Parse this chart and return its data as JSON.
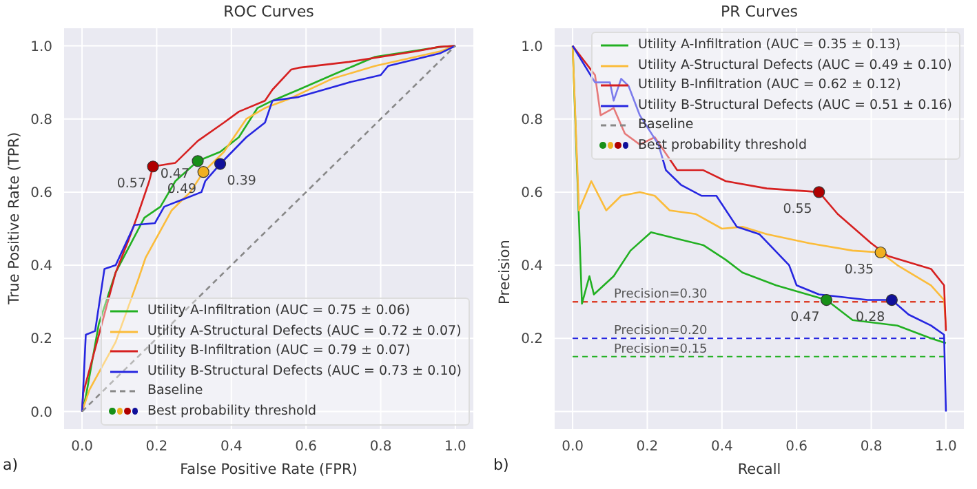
{
  "chart_data": [
    {
      "type": "line",
      "title": "ROC Curves",
      "xlabel": "False Positive Rate (FPR)",
      "ylabel": "True Positive Rate (TPR)",
      "xlim": [
        -0.05,
        1.05
      ],
      "ylim": [
        -0.05,
        1.05
      ],
      "xticks": [
        {
          "value": 0,
          "label": "0.0"
        },
        {
          "value": 0.2,
          "label": "0.2"
        },
        {
          "value": 0.4,
          "label": "0.4"
        },
        {
          "value": 0.6,
          "label": "0.6"
        },
        {
          "value": 0.8,
          "label": "0.8"
        },
        {
          "value": 1,
          "label": "1.0"
        }
      ],
      "yticks": [
        {
          "value": 0,
          "label": "0.0"
        },
        {
          "value": 0.2,
          "label": "0.2"
        },
        {
          "value": 0.4,
          "label": "0.4"
        },
        {
          "value": 0.6,
          "label": "0.6"
        },
        {
          "value": 0.8,
          "label": "0.8"
        },
        {
          "value": 1,
          "label": "1.0"
        }
      ],
      "grid": true,
      "legend": "bottom right",
      "annotations": [
        "a)",
        {
          "text": "0.47",
          "x": 0.31,
          "y": 0.685
        },
        {
          "text": "0.49",
          "x": 0.325,
          "y": 0.655
        },
        {
          "text": "0.57",
          "x": 0.19,
          "y": 0.67
        },
        {
          "text": "0.39",
          "x": 0.37,
          "y": 0.677
        }
      ],
      "series": [
        {
          "name": "Utility A-Infiltration (AUC = 0.75 ± 0.06)",
          "color": "#22b022",
          "x": [
            0,
            0.01,
            0.045,
            0.09,
            0.167,
            0.21,
            0.25,
            0.31,
            0.37,
            0.42,
            0.47,
            0.51,
            0.58,
            0.67,
            0.785,
            0.96,
            1
          ],
          "values": [
            0,
            0.04,
            0.24,
            0.38,
            0.53,
            0.56,
            0.63,
            0.685,
            0.71,
            0.75,
            0.83,
            0.85,
            0.88,
            0.92,
            0.97,
            0.997,
            1
          ]
        },
        {
          "name": "Utility A-Structural Defects (AUC = 0.72 ± 0.07)",
          "color": "#fbbc3a",
          "x": [
            0,
            0.02,
            0.09,
            0.15,
            0.17,
            0.24,
            0.29,
            0.325,
            0.38,
            0.44,
            0.49,
            0.555,
            0.67,
            0.785,
            0.96,
            1
          ],
          "values": [
            0,
            0.06,
            0.19,
            0.36,
            0.42,
            0.55,
            0.6,
            0.655,
            0.71,
            0.8,
            0.83,
            0.855,
            0.91,
            0.945,
            0.985,
            1
          ]
        },
        {
          "name": "Utility B-Infiltration (AUC = 0.79 ± 0.07)",
          "color": "#d62020",
          "x": [
            0,
            0.003,
            0.09,
            0.125,
            0.15,
            0.18,
            0.19,
            0.25,
            0.31,
            0.38,
            0.42,
            0.49,
            0.51,
            0.56,
            0.58,
            0.715,
            0.9,
            0.955,
            1
          ],
          "values": [
            0,
            0.05,
            0.38,
            0.47,
            0.54,
            0.63,
            0.67,
            0.68,
            0.74,
            0.79,
            0.82,
            0.85,
            0.88,
            0.935,
            0.94,
            0.956,
            0.986,
            0.997,
            1
          ]
        },
        {
          "name": "Utility B-Structural Defects (AUC = 0.73 ± 0.10)",
          "color": "#2626e0",
          "x": [
            0,
            0.003,
            0.01,
            0.035,
            0.06,
            0.09,
            0.14,
            0.195,
            0.22,
            0.32,
            0.33,
            0.37,
            0.44,
            0.49,
            0.51,
            0.58,
            0.715,
            0.8,
            0.82,
            0.96,
            1
          ],
          "values": [
            0,
            0.06,
            0.21,
            0.22,
            0.39,
            0.4,
            0.51,
            0.515,
            0.56,
            0.6,
            0.63,
            0.677,
            0.75,
            0.79,
            0.85,
            0.86,
            0.9,
            0.92,
            0.945,
            0.98,
            1
          ]
        },
        {
          "name": "Baseline",
          "color": "#888888",
          "line_style": "dashed",
          "x": [
            0,
            1
          ],
          "values": [
            0,
            1
          ]
        },
        {
          "name": "Best probability threshold",
          "type": "scatter",
          "marker": "circle",
          "color": "#777777",
          "colors": [
            "#189018",
            "#f0b020",
            "#b00000",
            "#10109a"
          ],
          "x": [
            0.31,
            0.325,
            0.19,
            0.37
          ],
          "values": [
            0.685,
            0.655,
            0.67,
            0.677
          ]
        }
      ]
    },
    {
      "type": "line",
      "title": "PR Curves",
      "xlabel": "Recall",
      "ylabel": "Precision",
      "xlim": [
        -0.05,
        1.05
      ],
      "ylim": [
        -0.05,
        1.05
      ],
      "xticks": [
        {
          "value": 0,
          "label": "0.0"
        },
        {
          "value": 0.2,
          "label": "0.2"
        },
        {
          "value": 0.4,
          "label": "0.4"
        },
        {
          "value": 0.6,
          "label": "0.6"
        },
        {
          "value": 0.8,
          "label": "0.8"
        },
        {
          "value": 1,
          "label": "1.0"
        }
      ],
      "yticks": [
        {
          "value": 0,
          "label": null
        },
        {
          "value": 0.2,
          "label": "0.2"
        },
        {
          "value": 0.4,
          "label": "0.4"
        },
        {
          "value": 0.6,
          "label": "0.6"
        },
        {
          "value": 0.8,
          "label": "0.8"
        },
        {
          "value": 1,
          "label": "1.0"
        }
      ],
      "grid": true,
      "legend": "top right",
      "annotations": [
        "b)",
        {
          "text": "0.47",
          "x": 0.68,
          "y": 0.305
        },
        {
          "text": "0.35",
          "x": 0.825,
          "y": 0.435
        },
        {
          "text": "0.55",
          "x": 0.66,
          "y": 0.6
        },
        {
          "text": "0.28",
          "x": 0.855,
          "y": 0.305
        }
      ],
      "ref_lines": [
        {
          "axis": "y",
          "value": 0.3,
          "label": "Precision=0.30",
          "color": "#fbbc3a",
          "line_style": "dashed"
        },
        {
          "axis": "y",
          "value": 0.3,
          "color": "#d62020",
          "line_style": "dashed"
        },
        {
          "axis": "y",
          "value": 0.2,
          "label": "Precision=0.20",
          "color": "#2626e0",
          "line_style": "dashed"
        },
        {
          "axis": "y",
          "value": 0.15,
          "label": "Precision=0.15",
          "color": "#22b022",
          "line_style": "dashed"
        }
      ],
      "series": [
        {
          "name": "Utility A-Infiltration (AUC = 0.35 ± 0.13)",
          "color": "#22b022",
          "x": [
            0,
            0.025,
            0.045,
            0.057,
            0.11,
            0.155,
            0.21,
            0.29,
            0.35,
            0.41,
            0.455,
            0.545,
            0.68,
            0.75,
            0.87,
            0.96,
            1
          ],
          "values": [
            1,
            0.295,
            0.37,
            0.32,
            0.37,
            0.44,
            0.49,
            0.47,
            0.455,
            0.415,
            0.38,
            0.345,
            0.305,
            0.25,
            0.235,
            0.2,
            0.187
          ]
        },
        {
          "name": "Utility A-Structural Defects (AUC = 0.49 ± 0.10)",
          "color": "#fbbc3a",
          "x": [
            0,
            0.017,
            0.05,
            0.09,
            0.13,
            0.18,
            0.22,
            0.26,
            0.33,
            0.4,
            0.455,
            0.52,
            0.635,
            0.75,
            0.825,
            0.87,
            0.96,
            0.995,
            1
          ],
          "values": [
            1,
            0.55,
            0.63,
            0.55,
            0.59,
            0.6,
            0.59,
            0.55,
            0.54,
            0.5,
            0.505,
            0.485,
            0.46,
            0.44,
            0.435,
            0.4,
            0.345,
            0.305,
            0.23
          ]
        },
        {
          "name": "Utility B-Infiltration (AUC = 0.62 ± 0.12)",
          "color": "#d62020",
          "x": [
            0,
            0.06,
            0.075,
            0.11,
            0.14,
            0.18,
            0.22,
            0.28,
            0.35,
            0.41,
            0.52,
            0.66,
            0.71,
            0.8,
            0.845,
            0.96,
            0.995,
            1
          ],
          "values": [
            1,
            0.92,
            0.81,
            0.83,
            0.76,
            0.73,
            0.75,
            0.66,
            0.66,
            0.63,
            0.61,
            0.6,
            0.54,
            0.46,
            0.425,
            0.39,
            0.345,
            0.22
          ]
        },
        {
          "name": "Utility B-Structural Defects (AUC = 0.51 ± 0.16)",
          "color": "#2626e0",
          "x": [
            0,
            0.06,
            0.1,
            0.11,
            0.13,
            0.15,
            0.18,
            0.23,
            0.25,
            0.29,
            0.345,
            0.385,
            0.44,
            0.5,
            0.58,
            0.6,
            0.66,
            0.79,
            0.855,
            0.9,
            0.96,
            0.995,
            1
          ],
          "values": [
            1,
            0.9,
            0.9,
            0.85,
            0.91,
            0.89,
            0.81,
            0.73,
            0.66,
            0.62,
            0.59,
            0.59,
            0.505,
            0.485,
            0.4,
            0.345,
            0.32,
            0.305,
            0.305,
            0.265,
            0.235,
            0.21,
            0
          ]
        },
        {
          "name": "Baseline",
          "color": "#888888",
          "line_style": "dashed"
        },
        {
          "name": "Best probability threshold",
          "type": "scatter",
          "marker": "circle",
          "color": "#777777",
          "colors": [
            "#189018",
            "#f0b020",
            "#b00000",
            "#10109a"
          ],
          "x": [
            0.68,
            0.825,
            0.66,
            0.855
          ],
          "values": [
            0.305,
            0.435,
            0.6,
            0.305
          ]
        }
      ]
    }
  ]
}
